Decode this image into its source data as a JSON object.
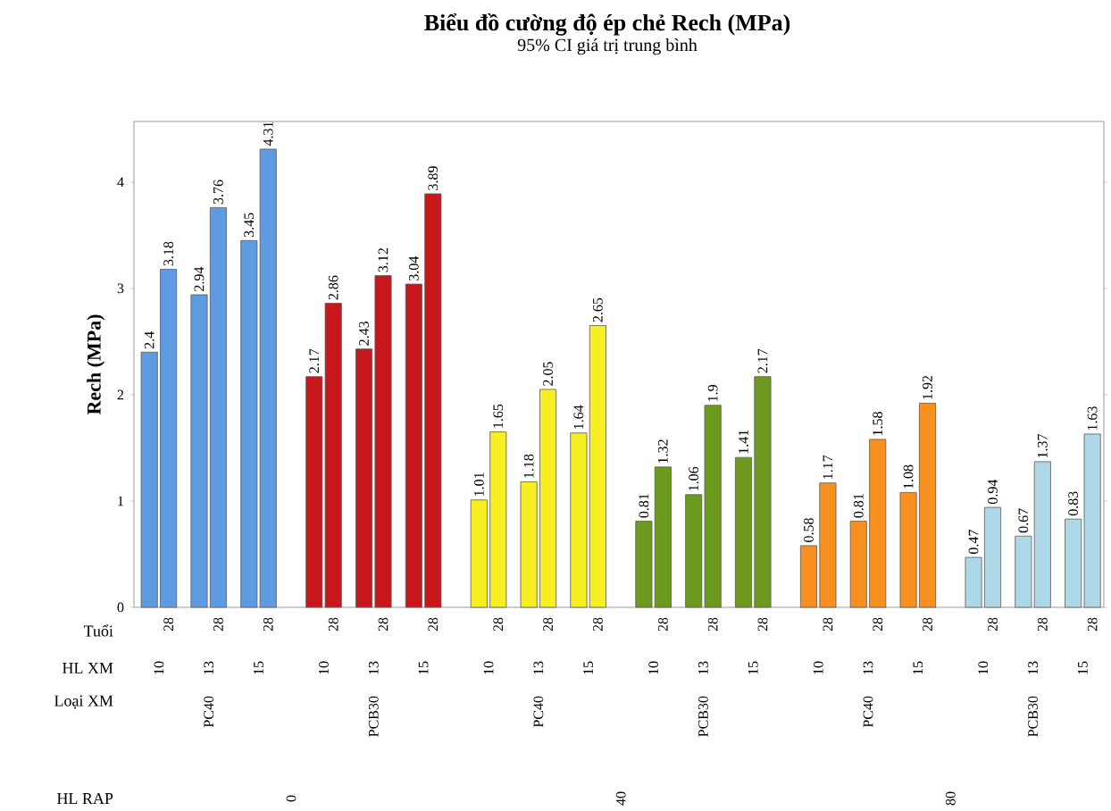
{
  "chart_data": {
    "type": "bar",
    "title": "Biểu đồ cường độ ép chẻ Rech (MPa)",
    "subtitle": "95% CI giá trị trung bình",
    "ylabel": "Rech (MPa)",
    "categories": [
      null,
      "28",
      null,
      "28",
      null,
      "28",
      null,
      "28",
      null,
      "28",
      null,
      "28",
      null,
      "28",
      null,
      "28",
      null,
      "28",
      null,
      "28",
      null,
      "28",
      null,
      "28",
      null,
      "28",
      null,
      "28",
      null,
      "28",
      null,
      "28",
      null,
      "28",
      null,
      "28"
    ],
    "values": [
      2.4,
      3.18,
      2.94,
      3.76,
      3.45,
      4.31,
      2.17,
      2.86,
      2.43,
      3.12,
      3.04,
      3.89,
      1.01,
      1.65,
      1.18,
      2.05,
      1.64,
      2.65,
      0.81,
      1.32,
      1.06,
      1.9,
      1.41,
      2.17,
      0.58,
      1.17,
      0.81,
      1.58,
      1.08,
      1.92,
      0.47,
      0.94,
      0.67,
      1.37,
      0.83,
      1.63
    ],
    "colors": [
      "#5f9be0",
      "#5f9be0",
      "#5f9be0",
      "#5f9be0",
      "#5f9be0",
      "#5f9be0",
      "#c8161d",
      "#c8161d",
      "#c8161d",
      "#c8161d",
      "#c8161d",
      "#c8161d",
      "#f7ef21",
      "#f7ef21",
      "#f7ef21",
      "#f7ef21",
      "#f7ef21",
      "#f7ef21",
      "#6b9a1f",
      "#6b9a1f",
      "#6b9a1f",
      "#6b9a1f",
      "#6b9a1f",
      "#6b9a1f",
      "#f7901e",
      "#f7901e",
      "#f7901e",
      "#f7901e",
      "#f7901e",
      "#f7901e",
      "#acd8e8",
      "#acd8e8",
      "#acd8e8",
      "#acd8e8",
      "#acd8e8",
      "#acd8e8"
    ],
    "data_labels": true,
    "ylim": [
      0,
      4.57
    ],
    "yticks": [
      0,
      1,
      2,
      3,
      4
    ],
    "grid": false,
    "annotations": [
      "Tuổi",
      "HL XM",
      "Loại XM",
      "HL RAP",
      "10",
      "13",
      "15",
      "10",
      "13",
      "15",
      "10",
      "13",
      "15",
      "10",
      "13",
      "15",
      "10",
      "13",
      "15",
      "10",
      "13",
      "15",
      "PC40",
      "PCB30",
      "PC40",
      "PCB30",
      "PC40",
      "PCB30",
      "0",
      "40",
      "80"
    ]
  }
}
